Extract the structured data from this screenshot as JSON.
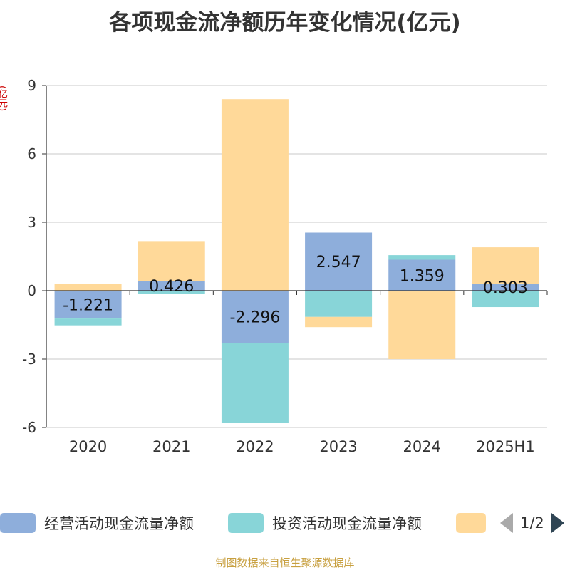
{
  "title": "各项现金流净额历年变化情况(亿元)",
  "unit_label": "(亿元)",
  "footer": "制图数据来自恒生聚源数据库",
  "legend_pager": {
    "text": "1/2"
  },
  "chart_data": {
    "type": "bar",
    "stacked": true,
    "categories": [
      "2020",
      "2021",
      "2022",
      "2023",
      "2024",
      "2025H1"
    ],
    "ylim": [
      -6,
      9
    ],
    "yticks": [
      -6,
      -3,
      0,
      3,
      6,
      9
    ],
    "grid": true,
    "legend_position": "bottom",
    "series": [
      {
        "name": "经营活动现金流量净额",
        "color": "#8eaedb",
        "values": [
          -1.221,
          0.426,
          -2.296,
          2.547,
          1.359,
          0.303
        ],
        "labels": [
          "-1.221",
          "0.426",
          "-2.296",
          "2.547",
          "1.359",
          "0.303"
        ]
      },
      {
        "name": "投资活动现金流量净额",
        "color": "#88d5d8",
        "values": [
          -0.3,
          -0.15,
          -3.5,
          -1.15,
          0.2,
          -0.72
        ]
      },
      {
        "name": "",
        "color": "#ffd999",
        "values": [
          0.3,
          1.75,
          8.4,
          -0.45,
          -3.0,
          1.6
        ]
      }
    ]
  }
}
